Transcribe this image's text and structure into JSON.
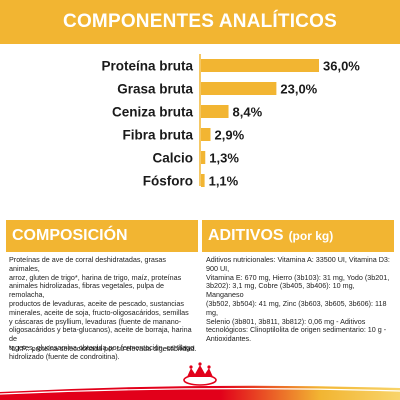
{
  "banner": {
    "title": "COMPONENTES ANALÍTICOS"
  },
  "chart_data": {
    "type": "bar",
    "orientation": "horizontal",
    "categories": [
      "Proteína bruta",
      "Grasa bruta",
      "Ceniza bruta",
      "Fibra bruta",
      "Calcio",
      "Fósforo"
    ],
    "values": [
      36.0,
      23.0,
      8.4,
      2.9,
      1.3,
      1.1
    ],
    "value_labels": [
      "36,0%",
      "23,0%",
      "8,4%",
      "2,9%",
      "1,3%",
      "1,1%"
    ],
    "xlim": [
      0,
      36
    ],
    "bar_color": "#F2B532",
    "axis_color": "#F2B532"
  },
  "composicion": {
    "title": "COMPOSICIÓN",
    "lines": [
      "Proteínas de ave de corral deshidratadas, grasas animales,",
      "arroz, gluten de trigo*, harina de trigo, maíz, proteínas",
      "animales hidrolizadas, fibras vegetales, pulpa de remolacha,",
      "productos de levaduras, aceite de pescado, sustancias",
      "minerales, aceite de soja, fructo-oligosacáridos, semillas",
      "y cáscaras de psyllium, levaduras (fuente de manano-",
      "oligosacáridos y beta-glucanos), aceite de borraja, harina de",
      "tagetes, glucosamina obtenida por fermentación, cartílago",
      "hidrolizado (fuente de condroitina)."
    ],
    "footnote": "*L.I.P.: proteína seleccionada por su elevada digestibilidad."
  },
  "aditivos": {
    "title": "ADITIVOS",
    "subtitle": "(por kg)",
    "lines": [
      "Aditivos nutricionales: Vitamina A: 33500 UI, Vitamina D3: 900 UI,",
      "Vitamina E: 670 mg, Hierro (3b103): 31 mg, Yodo (3b201,",
      "3b202): 3,1 mg, Cobre (3b405, 3b406): 10 mg, Manganeso",
      "(3b502, 3b504): 41 mg, Zinc (3b603, 3b605, 3b606): 118 mg,",
      "Selenio (3b801, 3b811, 3b812): 0,06 mg - Aditivos",
      "tecnológicos: Clinoptilolita de origen sedimentario: 10 g -",
      "Antioxidantes."
    ]
  },
  "brand": {
    "logo_icon": "royal-canin-crown-icon",
    "accent": "#E2001A",
    "yellow": "#F2B532"
  }
}
